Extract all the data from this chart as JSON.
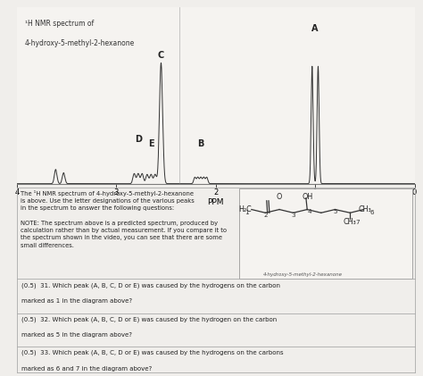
{
  "background_color": "#f0eeeb",
  "spectrum_bg": "#f5f3f0",
  "title_line1": "¹H NMR spectrum of",
  "title_line2": "4-hydroxy-5-methyl-2-hexanone",
  "xlabel": "PPM",
  "xmin": 0,
  "xmax": 4,
  "text_color": "#222222",
  "border_color": "#aaaaaa",
  "questions": [
    "(0.5)  31. Which peak (A, B, C, D or E) was caused by the hydrogens on the carbon\nmarked as 1 in the diagram above?",
    "(0.5)  32. Which peak (A, B, C, D or E) was caused by the hydrogen on the carbon\nmarked as 5 in the diagram above?",
    "(0.5)  33. Which peak (A, B, C, D or E) was caused by the hydrogens on the carbons\nmarked as 6 and 7 in the diagram above?"
  ]
}
